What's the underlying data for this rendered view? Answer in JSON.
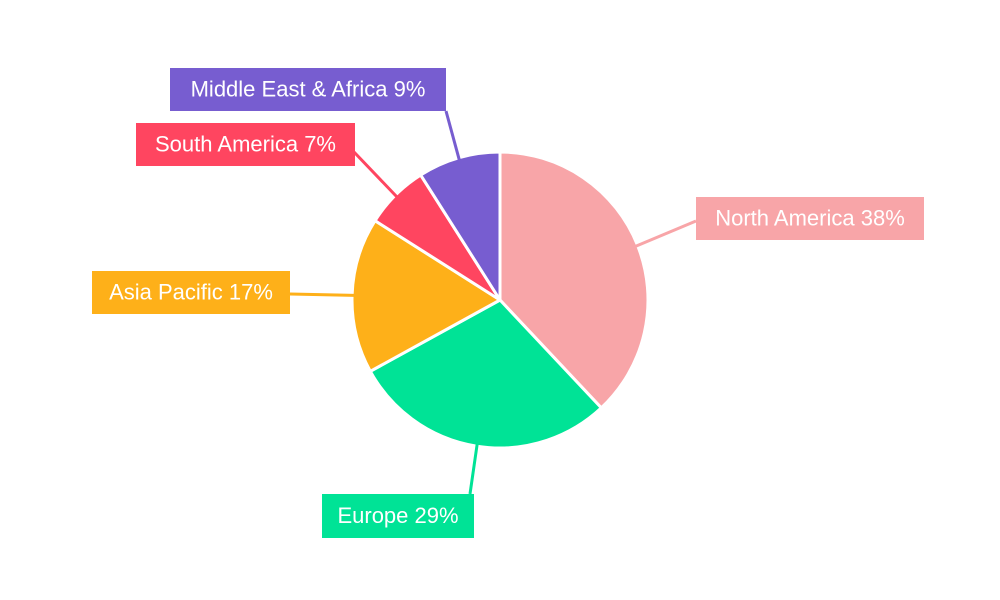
{
  "chart_data": {
    "type": "pie",
    "slices": [
      {
        "label": "North America",
        "value": 38,
        "display": "North America 38%",
        "color": "#f8a5a8"
      },
      {
        "label": "Europe",
        "value": 29,
        "display": "Europe 29%",
        "color": "#00e396"
      },
      {
        "label": "Asia Pacific",
        "value": 17,
        "display": "Asia Pacific 17%",
        "color": "#feb019"
      },
      {
        "label": "South America",
        "value": 7,
        "display": "South America 7%",
        "color": "#ff4560"
      },
      {
        "label": "Middle East & Africa",
        "value": 9,
        "display": "Middle East & Africa 9%",
        "color": "#775dd0"
      }
    ],
    "start_angle_deg": 0,
    "direction": "clockwise",
    "legend": "none",
    "data_labels": "outside with leader lines"
  }
}
